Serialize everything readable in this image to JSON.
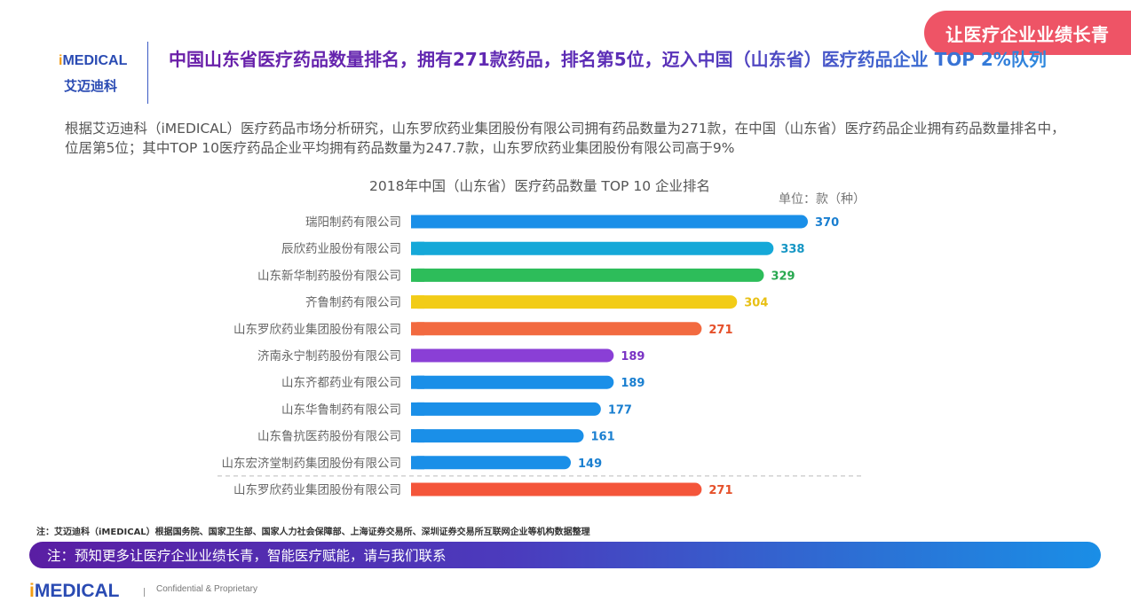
{
  "banner": {
    "text": "让医疗企业业绩长青"
  },
  "logo": {
    "prefix": "i",
    "name": "MEDICAL",
    "cn": "艾迈迪科"
  },
  "header": {
    "title": "中国山东省医疗药品数量排名，拥有271款药品，排名第5位，迈入中国（山东省）医疗药品企业 TOP 2%队列"
  },
  "description": "根据艾迈迪科（iMEDICAL）医疗药品市场分析研究，山东罗欣药业集团股份有限公司拥有药品数量为271款，在中国（山东省）医疗药品企业拥有药品数量排名中，位居第5位；其中TOP 10医疗药品企业平均拥有药品数量为247.7款，山东罗欣药业集团股份有限公司高于9%",
  "chart_data": {
    "type": "bar",
    "orientation": "horizontal",
    "title": "2018年中国（山东省）医疗药品数量 TOP 10 企业排名",
    "unit": "单位：款（种）",
    "categories": [
      "瑞阳制药有限公司",
      "辰欣药业股份有限公司",
      "山东新华制药股份有限公司",
      "齐鲁制药有限公司",
      "山东罗欣药业集团股份有限公司",
      "济南永宁制药股份有限公司",
      "山东齐都药业有限公司",
      "山东华鲁制药有限公司",
      "山东鲁抗医药股份有限公司",
      "山东宏济堂制药集团股份有限公司",
      "山东罗欣药业集团股份有限公司"
    ],
    "values": [
      370,
      338,
      329,
      304,
      271,
      189,
      189,
      177,
      161,
      149,
      271
    ],
    "colors": [
      "#1a8fe8",
      "#15a8d8",
      "#2dbd5a",
      "#f2cc17",
      "#f26a40",
      "#8a3fd6",
      "#1a8fe8",
      "#1a8fe8",
      "#1a8fe8",
      "#1a8fe8",
      "#f4553a"
    ],
    "label_colors": [
      "#1a7fd0",
      "#1596c4",
      "#27a84f",
      "#e8c015",
      "#e5502a",
      "#7a33c4",
      "#1a7fd0",
      "#1a7fd0",
      "#1a7fd0",
      "#1a7fd0",
      "#e5502a"
    ],
    "xlim": [
      0,
      370
    ]
  },
  "note": "注：艾迈迪科（iMEDICAL）根据国务院、国家卫生部、国家人力社会保障部、上海证券交易所、深圳证券交易所互联网企业等机构数据整理",
  "footer": {
    "banner_text": "注：预知更多让医疗企业业绩长青，智能医疗赋能，请与我们联系",
    "confidential": "Confidential & Proprietary"
  }
}
